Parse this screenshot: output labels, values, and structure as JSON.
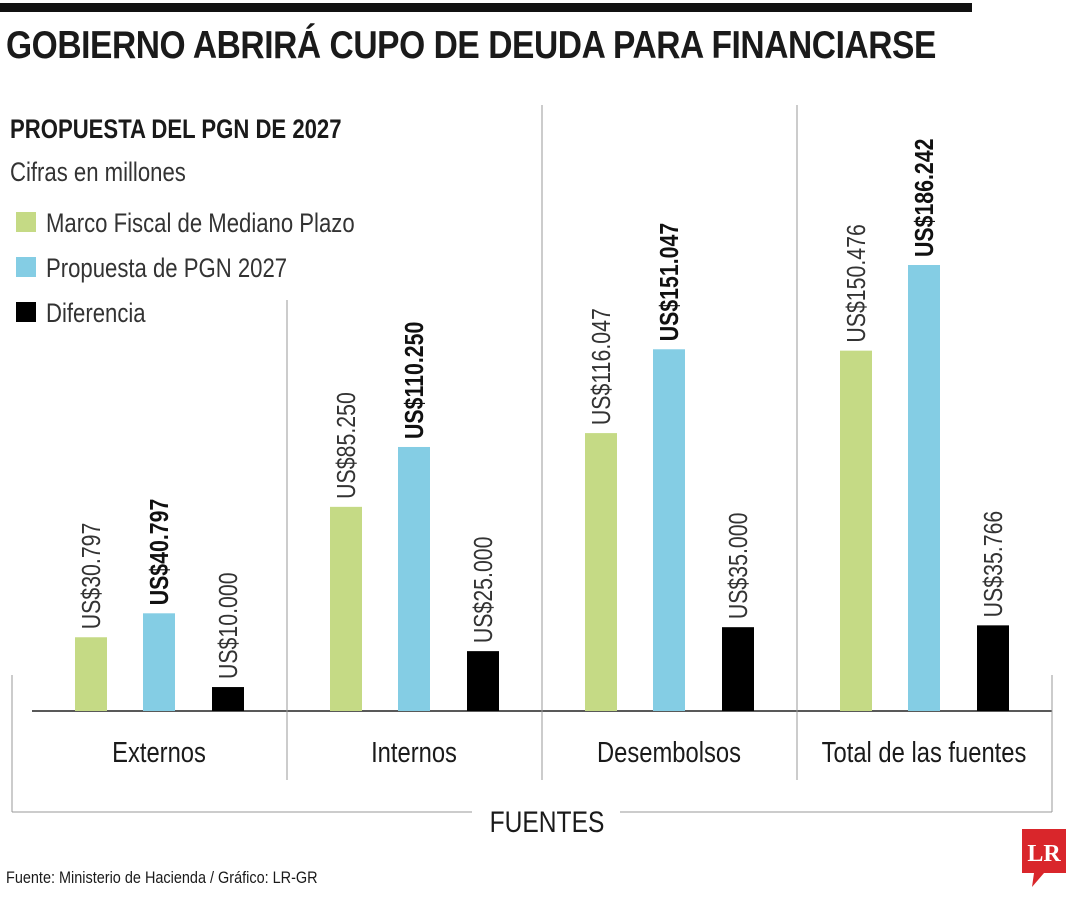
{
  "headline": "GOBIERNO ABRIRÁ CUPO DE DEUDA PARA FINANCIARSE",
  "source": "Fuente: Ministerio de Hacienda / Gráfico: LR-GR",
  "logo_text": "LR",
  "colors": {
    "marco": "#c5da85",
    "propuesta": "#84cde4",
    "diferencia": "#000000",
    "logo": "#d9262b"
  },
  "chart_data": {
    "type": "bar",
    "title": "PROPUESTA DEL PGN DE 2027",
    "subtitle": "Cifras en millones",
    "xlabel": "FUENTES",
    "ylabel": "",
    "categories": [
      "Externos",
      "Internos",
      "Desembolsos",
      "Total de las fuentes"
    ],
    "series": [
      {
        "name": "Marco Fiscal de Mediano Plazo",
        "color": "#c5da85",
        "bold": false,
        "values": [
          30797,
          85250,
          116047,
          150476
        ],
        "labels": [
          "US$30.797",
          "US$85.250",
          "US$116.047",
          "US$150.476"
        ]
      },
      {
        "name": "Propuesta de PGN 2027",
        "color": "#84cde4",
        "bold": true,
        "values": [
          40797,
          110250,
          151047,
          186242
        ],
        "labels": [
          "US$40.797",
          "US$110.250",
          "US$151.047",
          "US$186.242"
        ]
      },
      {
        "name": "Diferencia",
        "color": "#000000",
        "bold": false,
        "values": [
          10000,
          25000,
          35000,
          35766
        ],
        "labels": [
          "US$10.000",
          "US$25.000",
          "US$35.000",
          "US$35.766"
        ]
      }
    ],
    "ylim": [
      0,
      186242
    ],
    "grid": false,
    "legend": "top-left"
  }
}
